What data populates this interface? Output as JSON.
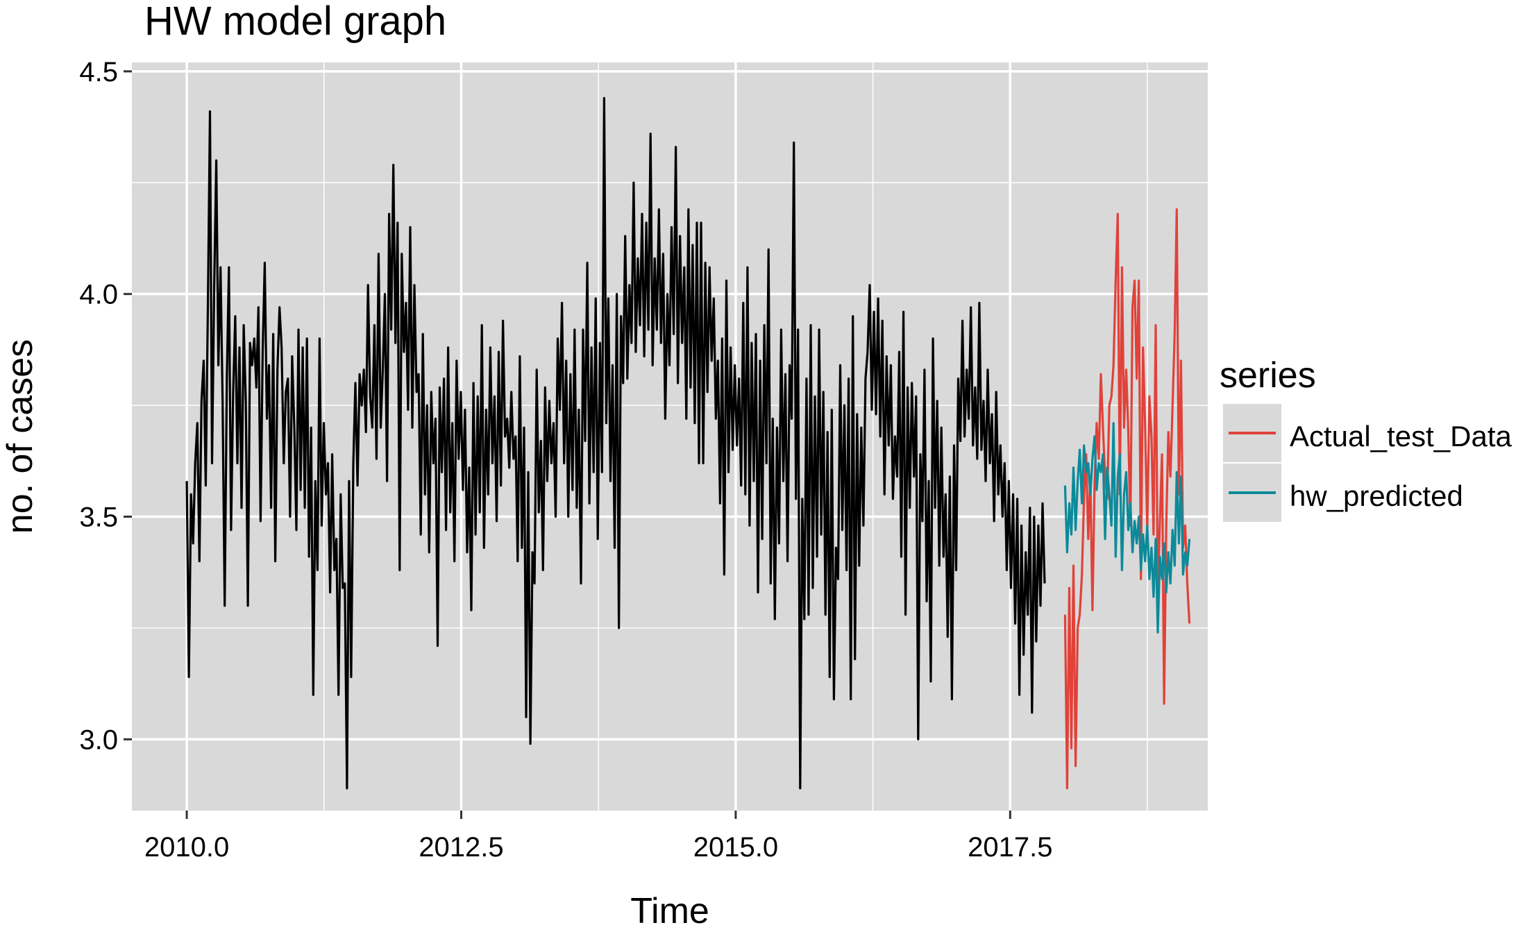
{
  "chart_data": {
    "type": "line",
    "title": "HW model graph",
    "xlabel": "Time",
    "ylabel": "no. of cases",
    "xlim": [
      2009.5,
      2019.3
    ],
    "ylim": [
      2.84,
      4.52
    ],
    "x_ticks": [
      2010.0,
      2012.5,
      2015.0,
      2017.5
    ],
    "x_tick_labels": [
      "2010.0",
      "2012.5",
      "2015.0",
      "2017.5"
    ],
    "y_ticks": [
      3.0,
      3.5,
      4.0,
      4.5
    ],
    "y_tick_labels": [
      "3.0",
      "3.5",
      "4.0",
      "4.5"
    ],
    "grid": true,
    "legend": {
      "title": "series",
      "placement": "right",
      "entries": [
        "Actual_test_Data",
        "hw_predicted"
      ]
    },
    "colors": {
      "history": "#000000",
      "Actual_test_Data": "#e0423a",
      "hw_predicted": "#0c8a9a",
      "panel": "#d9d9d9",
      "grid": "#ffffff"
    },
    "series": [
      {
        "key": "history",
        "x_start": 2010.0,
        "step": 0.0192,
        "values": [
          3.58,
          3.14,
          3.55,
          3.44,
          3.62,
          3.71,
          3.4,
          3.76,
          3.85,
          3.57,
          3.96,
          4.41,
          3.62,
          4.02,
          4.3,
          3.84,
          4.06,
          3.76,
          3.3,
          3.81,
          4.06,
          3.47,
          3.78,
          3.95,
          3.62,
          3.88,
          3.52,
          3.93,
          3.76,
          3.3,
          3.89,
          3.84,
          3.9,
          3.79,
          3.97,
          3.49,
          3.87,
          4.07,
          3.72,
          3.84,
          3.52,
          3.91,
          3.4,
          3.83,
          3.97,
          3.88,
          3.62,
          3.78,
          3.81,
          3.5,
          3.86,
          3.7,
          3.47,
          3.92,
          3.56,
          3.88,
          3.52,
          3.9,
          3.41,
          3.7,
          3.1,
          3.58,
          3.38,
          3.9,
          3.48,
          3.71,
          3.55,
          3.62,
          3.33,
          3.64,
          3.38,
          3.45,
          3.1,
          3.55,
          3.34,
          3.35,
          2.89,
          3.58,
          3.14,
          3.62,
          3.8,
          3.57,
          3.82,
          3.75,
          3.83,
          3.69,
          4.02,
          3.77,
          3.7,
          3.93,
          3.63,
          4.09,
          3.7,
          3.83,
          4.0,
          3.58,
          4.18,
          3.92,
          4.29,
          3.89,
          4.16,
          3.38,
          4.09,
          3.87,
          3.98,
          3.74,
          4.15,
          3.7,
          4.02,
          3.78,
          3.82,
          3.46,
          3.91,
          3.55,
          3.75,
          3.42,
          3.78,
          3.62,
          3.72,
          3.21,
          3.79,
          3.6,
          3.81,
          3.47,
          3.88,
          3.51,
          3.71,
          3.4,
          3.85,
          3.63,
          3.78,
          3.56,
          3.74,
          3.42,
          3.61,
          3.29,
          3.8,
          3.46,
          3.77,
          3.51,
          3.93,
          3.43,
          3.74,
          3.55,
          3.88,
          3.62,
          3.77,
          3.49,
          3.87,
          3.57,
          3.94,
          3.68,
          3.72,
          3.61,
          3.78,
          3.63,
          3.68,
          3.4,
          3.86,
          3.43,
          3.7,
          3.05,
          3.6,
          2.99,
          3.42,
          3.35,
          3.83,
          3.51,
          3.67,
          3.38,
          3.79,
          3.58,
          3.76,
          3.62,
          3.71,
          3.5,
          3.9,
          3.74,
          3.98,
          3.62,
          3.85,
          3.5,
          3.82,
          3.56,
          3.92,
          3.52,
          3.74,
          3.35,
          3.92,
          3.67,
          4.07,
          3.53,
          3.88,
          3.6,
          3.99,
          3.45,
          3.89,
          3.6,
          4.44,
          3.71,
          3.99,
          3.58,
          3.84,
          3.43,
          4.0,
          3.25,
          3.95,
          3.8,
          4.13,
          3.81,
          4.02,
          3.89,
          4.25,
          3.87,
          4.08,
          3.93,
          4.18,
          3.86,
          4.16,
          3.92,
          4.36,
          3.84,
          4.08,
          3.92,
          4.19,
          3.89,
          4.09,
          3.72,
          4.0,
          3.84,
          4.15,
          3.91,
          4.33,
          3.8,
          4.13,
          3.89,
          4.06,
          3.72,
          4.19,
          3.79,
          4.11,
          3.71,
          4.16,
          3.62,
          4.16,
          3.62,
          4.07,
          3.78,
          4.06,
          3.85,
          3.99,
          3.72,
          3.85,
          3.53,
          3.9,
          3.37,
          4.03,
          3.6,
          3.88,
          3.65,
          3.84,
          3.66,
          3.81,
          3.57,
          3.98,
          3.55,
          4.06,
          3.48,
          3.89,
          3.58,
          3.91,
          3.33,
          3.85,
          3.45,
          3.93,
          3.62,
          4.1,
          3.35,
          3.72,
          3.27,
          3.7,
          3.44,
          3.92,
          3.58,
          3.82,
          3.4,
          3.84,
          3.72,
          4.34,
          3.54,
          3.92,
          2.89,
          3.54,
          3.27,
          3.81,
          3.28,
          3.93,
          3.34,
          3.77,
          3.41,
          3.92,
          3.46,
          3.78,
          3.28,
          3.69,
          3.14,
          3.74,
          3.09,
          3.43,
          3.36,
          3.84,
          3.47,
          3.75,
          3.38,
          3.81,
          3.09,
          3.95,
          3.18,
          3.73,
          3.39,
          3.7,
          3.48,
          3.81,
          3.87,
          4.02,
          3.74,
          3.96,
          3.73,
          3.99,
          3.68,
          3.94,
          3.55,
          3.86,
          3.66,
          3.84,
          3.54,
          3.68,
          3.59,
          3.87,
          3.41,
          3.96,
          3.28,
          3.79,
          3.52,
          3.8,
          3.59,
          3.77,
          3.0,
          3.64,
          3.49,
          3.83,
          3.31,
          3.58,
          3.13,
          3.9,
          3.52,
          3.76,
          3.39,
          3.7,
          3.41,
          3.55,
          3.23,
          3.59,
          3.09,
          3.66,
          3.38,
          3.81,
          3.67,
          3.94,
          3.68,
          3.83,
          3.72,
          3.97,
          3.66,
          3.79,
          3.63,
          3.98,
          3.65,
          3.76,
          3.58,
          3.83,
          3.62,
          3.73,
          3.49,
          3.78,
          3.55,
          3.66,
          3.5,
          3.62,
          3.38,
          3.58,
          3.34,
          3.55,
          3.26,
          3.54,
          3.1,
          3.48,
          3.19,
          3.42,
          3.28,
          3.52,
          3.06,
          3.5,
          3.22,
          3.48,
          3.3,
          3.53,
          3.35
        ]
      },
      {
        "name": "Actual_test_Data",
        "x_start": 2018.0,
        "step": 0.0192,
        "values": [
          3.28,
          2.89,
          3.34,
          2.98,
          3.39,
          2.94,
          3.25,
          3.28,
          3.37,
          3.54,
          3.64,
          3.45,
          3.59,
          3.29,
          3.57,
          3.71,
          3.63,
          3.82,
          3.7,
          3.59,
          3.54,
          3.75,
          3.77,
          3.84,
          4.03,
          4.18,
          3.55,
          4.06,
          3.7,
          3.83,
          3.69,
          3.48,
          3.97,
          4.03,
          3.81,
          4.03,
          3.36,
          3.88,
          3.7,
          3.47,
          3.77,
          3.68,
          3.46,
          3.93,
          3.32,
          3.49,
          3.64,
          3.08,
          3.48,
          3.69,
          3.59,
          3.75,
          3.91,
          4.19,
          3.55,
          3.85,
          3.43,
          3.48,
          3.35,
          3.26
        ]
      },
      {
        "name": "hw_predicted",
        "x_start": 2018.0,
        "step": 0.0192,
        "values": [
          3.57,
          3.42,
          3.53,
          3.46,
          3.61,
          3.47,
          3.58,
          3.65,
          3.53,
          3.66,
          3.6,
          3.62,
          3.55,
          3.63,
          3.68,
          3.56,
          3.62,
          3.6,
          3.64,
          3.45,
          3.61,
          3.55,
          3.48,
          3.71,
          3.41,
          3.59,
          3.64,
          3.38,
          3.55,
          3.6,
          3.47,
          3.53,
          3.42,
          3.49,
          3.44,
          3.5,
          3.38,
          3.46,
          3.4,
          3.48,
          3.36,
          3.43,
          3.32,
          3.45,
          3.24,
          3.41,
          3.36,
          3.44,
          3.33,
          3.42,
          3.35,
          3.47,
          3.39,
          3.6,
          3.44,
          3.59,
          3.37,
          3.42,
          3.39,
          3.45
        ]
      }
    ]
  }
}
